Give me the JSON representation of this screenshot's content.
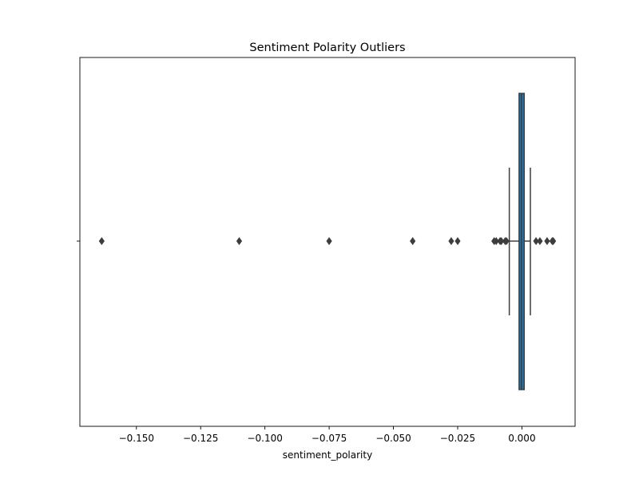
{
  "chart_data": {
    "type": "box",
    "title": "Sentiment Polarity Outliers",
    "xlabel": "sentiment_polarity",
    "ylabel": "",
    "orientation": "horizontal",
    "xlim": [
      -0.172,
      0.0207
    ],
    "x_ticks": [
      -0.15,
      -0.125,
      -0.1,
      -0.075,
      -0.05,
      -0.025,
      0.0
    ],
    "x_tick_labels": [
      "−0.150",
      "−0.125",
      "−0.100",
      "−0.075",
      "−0.050",
      "−0.025",
      "0.000"
    ],
    "grid": false,
    "box": {
      "q1": -0.0011,
      "median": -0.0002,
      "q3": 0.0009,
      "whisker_low": -0.0049,
      "whisker_high": 0.0033,
      "outliers": [
        -0.1635,
        -0.11,
        -0.075,
        -0.0425,
        -0.0275,
        -0.025,
        -0.0108,
        -0.01,
        -0.0085,
        -0.008,
        -0.0065,
        -0.006,
        0.0055,
        0.007,
        0.0098,
        0.0118,
        0.0122
      ],
      "fill_color": "#1f77b4",
      "line_color": "#3d3d3d"
    }
  }
}
